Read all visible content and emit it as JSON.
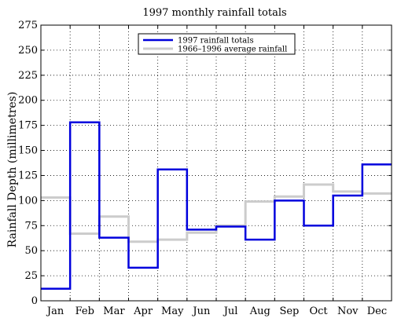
{
  "chart_data": {
    "type": "line",
    "step": true,
    "title": "1997 monthly rainfall totals",
    "xlabel": "",
    "ylabel": "Rainfall Depth (millimetres)",
    "categories": [
      "Jan",
      "Feb",
      "Mar",
      "Apr",
      "May",
      "Jun",
      "Jul",
      "Aug",
      "Sep",
      "Oct",
      "Nov",
      "Dec"
    ],
    "ylim": [
      0,
      275
    ],
    "yticks": [
      0,
      25,
      50,
      75,
      100,
      125,
      150,
      175,
      200,
      225,
      250,
      275
    ],
    "grid": true,
    "legend_position": "top-center",
    "series": [
      {
        "name": "1997 rainfall totals",
        "color": "#0000dd",
        "values": [
          12,
          178,
          63,
          33,
          131,
          71,
          74,
          61,
          100,
          75,
          105,
          136
        ]
      },
      {
        "name": "1966–1996 average rainfall",
        "color": "#cccccc",
        "values": [
          103,
          67,
          84,
          59,
          61,
          68,
          75,
          99,
          104,
          116,
          109,
          107
        ]
      }
    ]
  }
}
